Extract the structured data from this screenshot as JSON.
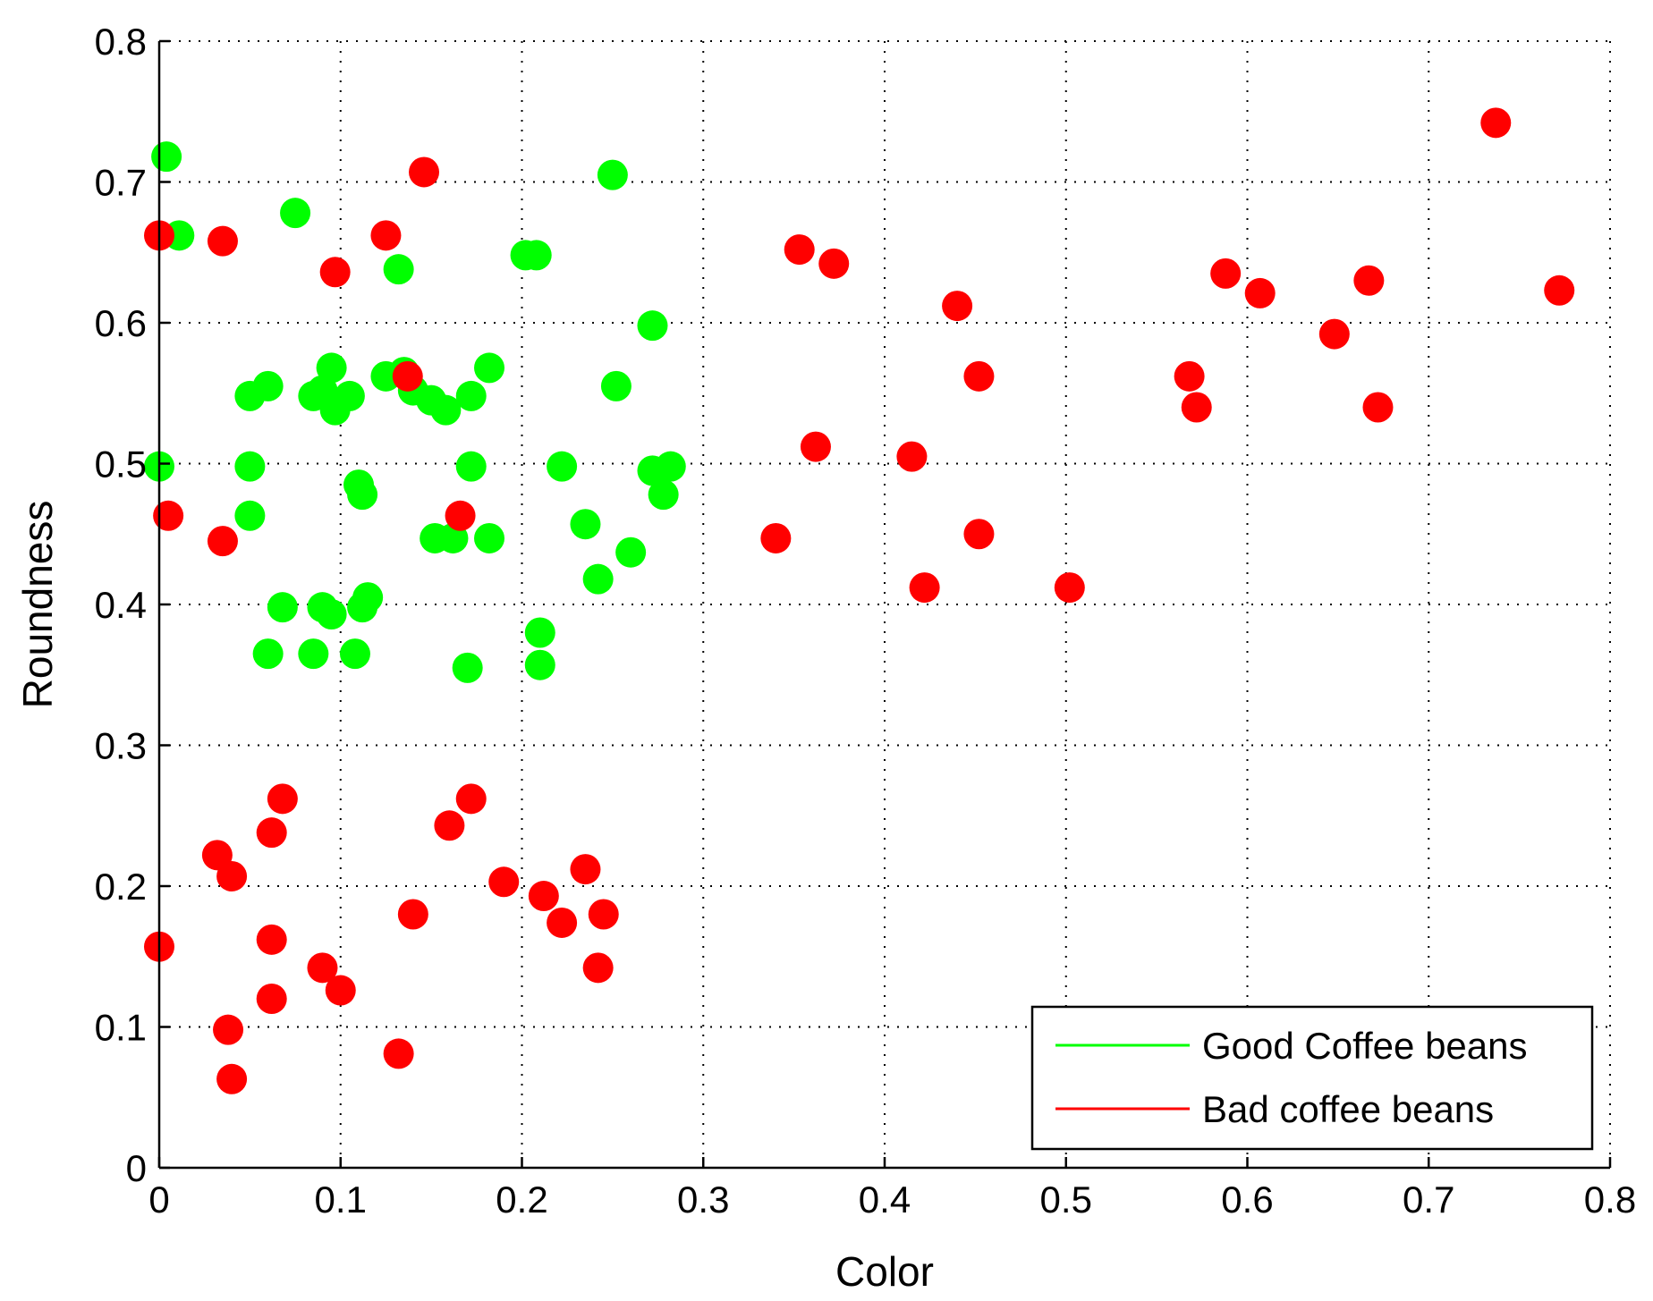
{
  "chart_data": {
    "type": "scatter",
    "title": "",
    "xlabel": "Color",
    "ylabel": "Roundness",
    "xlim": [
      0,
      0.8
    ],
    "ylim": [
      0,
      0.8
    ],
    "xticks": [
      "0",
      "0.1",
      "0.2",
      "0.3",
      "0.4",
      "0.5",
      "0.6",
      "0.7",
      "0.8"
    ],
    "yticks": [
      "0",
      "0.1",
      "0.2",
      "0.3",
      "0.4",
      "0.5",
      "0.6",
      "0.7",
      "0.8"
    ],
    "grid": true,
    "legend_position": "bottom-right",
    "series": [
      {
        "name": "Good Coffee beans",
        "color": "#00ff00",
        "points": [
          [
            0.004,
            0.718
          ],
          [
            0.011,
            0.662
          ],
          [
            0.075,
            0.678
          ],
          [
            0.0,
            0.498
          ],
          [
            0.05,
            0.498
          ],
          [
            0.05,
            0.463
          ],
          [
            0.05,
            0.548
          ],
          [
            0.06,
            0.555
          ],
          [
            0.085,
            0.548
          ],
          [
            0.09,
            0.552
          ],
          [
            0.095,
            0.568
          ],
          [
            0.097,
            0.538
          ],
          [
            0.105,
            0.548
          ],
          [
            0.125,
            0.562
          ],
          [
            0.132,
            0.638
          ],
          [
            0.135,
            0.565
          ],
          [
            0.14,
            0.552
          ],
          [
            0.15,
            0.545
          ],
          [
            0.158,
            0.538
          ],
          [
            0.172,
            0.548
          ],
          [
            0.182,
            0.568
          ],
          [
            0.11,
            0.485
          ],
          [
            0.112,
            0.478
          ],
          [
            0.172,
            0.498
          ],
          [
            0.152,
            0.447
          ],
          [
            0.162,
            0.447
          ],
          [
            0.182,
            0.447
          ],
          [
            0.202,
            0.648
          ],
          [
            0.208,
            0.648
          ],
          [
            0.25,
            0.705
          ],
          [
            0.272,
            0.598
          ],
          [
            0.252,
            0.555
          ],
          [
            0.222,
            0.498
          ],
          [
            0.235,
            0.457
          ],
          [
            0.242,
            0.418
          ],
          [
            0.26,
            0.437
          ],
          [
            0.272,
            0.495
          ],
          [
            0.278,
            0.478
          ],
          [
            0.282,
            0.498
          ],
          [
            0.068,
            0.398
          ],
          [
            0.09,
            0.398
          ],
          [
            0.095,
            0.393
          ],
          [
            0.112,
            0.398
          ],
          [
            0.115,
            0.405
          ],
          [
            0.06,
            0.365
          ],
          [
            0.085,
            0.365
          ],
          [
            0.108,
            0.365
          ],
          [
            0.17,
            0.355
          ],
          [
            0.21,
            0.38
          ],
          [
            0.21,
            0.357
          ]
        ]
      },
      {
        "name": "Bad coffee beans",
        "color": "#ff0000",
        "points": [
          [
            0.0,
            0.662
          ],
          [
            0.035,
            0.658
          ],
          [
            0.097,
            0.636
          ],
          [
            0.125,
            0.662
          ],
          [
            0.146,
            0.707
          ],
          [
            0.137,
            0.562
          ],
          [
            0.005,
            0.463
          ],
          [
            0.035,
            0.445
          ],
          [
            0.166,
            0.463
          ],
          [
            0.353,
            0.652
          ],
          [
            0.372,
            0.642
          ],
          [
            0.44,
            0.612
          ],
          [
            0.452,
            0.562
          ],
          [
            0.362,
            0.512
          ],
          [
            0.415,
            0.505
          ],
          [
            0.34,
            0.447
          ],
          [
            0.452,
            0.45
          ],
          [
            0.422,
            0.412
          ],
          [
            0.502,
            0.412
          ],
          [
            0.588,
            0.635
          ],
          [
            0.607,
            0.621
          ],
          [
            0.568,
            0.562
          ],
          [
            0.572,
            0.54
          ],
          [
            0.648,
            0.592
          ],
          [
            0.667,
            0.63
          ],
          [
            0.672,
            0.54
          ],
          [
            0.737,
            0.742
          ],
          [
            0.772,
            0.623
          ],
          [
            0.068,
            0.262
          ],
          [
            0.062,
            0.238
          ],
          [
            0.032,
            0.222
          ],
          [
            0.04,
            0.207
          ],
          [
            0.0,
            0.157
          ],
          [
            0.062,
            0.162
          ],
          [
            0.09,
            0.142
          ],
          [
            0.1,
            0.126
          ],
          [
            0.062,
            0.12
          ],
          [
            0.038,
            0.098
          ],
          [
            0.04,
            0.063
          ],
          [
            0.132,
            0.081
          ],
          [
            0.14,
            0.18
          ],
          [
            0.16,
            0.243
          ],
          [
            0.172,
            0.262
          ],
          [
            0.19,
            0.203
          ],
          [
            0.212,
            0.193
          ],
          [
            0.222,
            0.174
          ],
          [
            0.235,
            0.212
          ],
          [
            0.245,
            0.18
          ],
          [
            0.242,
            0.142
          ]
        ]
      }
    ]
  }
}
